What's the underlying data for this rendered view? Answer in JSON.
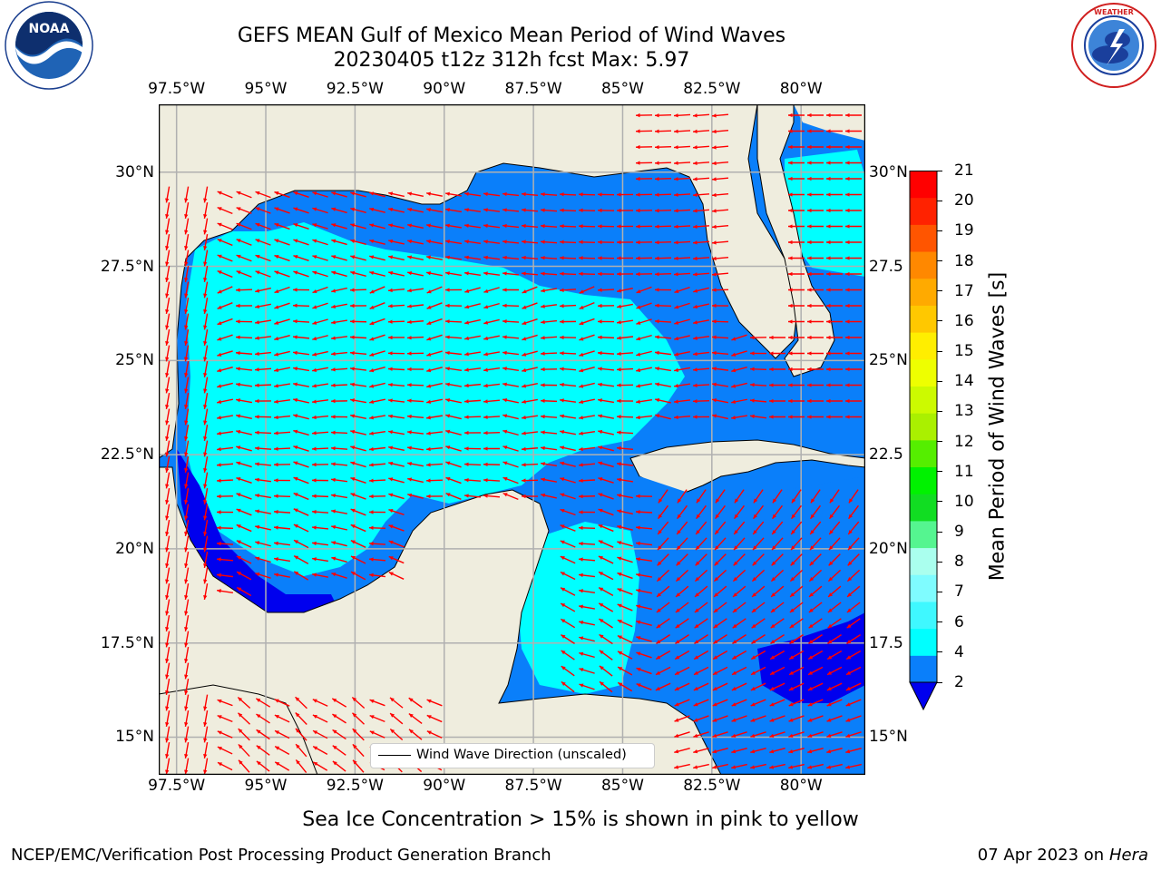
{
  "title": {
    "line1": "GEFS MEAN Gulf of Mexico Mean Period of Wind Waves",
    "line2": "20230405 t12z 312h fcst   Max: 5.97"
  },
  "logos": {
    "noara": "NOAA",
    "noaa_ring": "NATIONAL OCEANIC AND ATMOSPHERIC ADMINISTRATION · U.S. DEPARTMENT OF COMMERCE",
    "nws_ring": "NATIONAL WEATHER SERVICE"
  },
  "map": {
    "lon_ticks": [
      "97.5°W",
      "95°W",
      "92.5°W",
      "90°W",
      "87.5°W",
      "85°W",
      "82.5°W",
      "80°W"
    ],
    "lon_values": [
      -97.5,
      -95,
      -92.5,
      -90,
      -87.5,
      -85,
      -82.5,
      -80
    ],
    "lat_ticks_left": [
      "30°N",
      "27.5°N",
      "25°N",
      "22.5°N",
      "20°N",
      "17.5°N",
      "15°N"
    ],
    "lat_ticks_right": [
      "30°N",
      "27.5",
      "25°N",
      "22.5",
      "20°N",
      "17.5",
      "15°N"
    ],
    "lat_values": [
      30,
      27.5,
      25,
      22.5,
      20,
      17.5,
      15
    ],
    "extent": {
      "lon_min": -98,
      "lon_max": -78.2,
      "lat_min": 14,
      "lat_max": 31.8
    },
    "legend_label": "Wind Wave Direction (unscaled)",
    "colors": {
      "land": "#efedde",
      "ocean_2_4": "#0a7ffa",
      "ocean_4_6": "#00ffff",
      "ocean_lt2": "#0000ee",
      "arrow": "#ff0000",
      "grid": "#b0b0b0"
    }
  },
  "colorbar": {
    "label": "Mean Period of Wind Waves [s]",
    "ticks": [
      "2",
      "4",
      "6",
      "7",
      "8",
      "9",
      "10",
      "11",
      "12",
      "13",
      "14",
      "15",
      "16",
      "17",
      "18",
      "19",
      "20",
      "21"
    ],
    "colors": [
      "#0a7ffa",
      "#00ffff",
      "#3ff8ff",
      "#7ffcff",
      "#aaffee",
      "#55f590",
      "#11dd22",
      "#00f200",
      "#55ee00",
      "#aaf000",
      "#ccfa00",
      "#eeff00",
      "#ffee00",
      "#ffc800",
      "#ffaa00",
      "#ff8800",
      "#ff5500",
      "#ff2200",
      "#ff0000"
    ],
    "extend_color": "#0000ee"
  },
  "footer": {
    "note": "Sea Ice Concentration > 15% is shown in pink to yellow",
    "left": "NCEP/EMC/Verification Post Processing Product Generation Branch",
    "right_date": "07 Apr 2023 on ",
    "right_machine": "Hera"
  }
}
